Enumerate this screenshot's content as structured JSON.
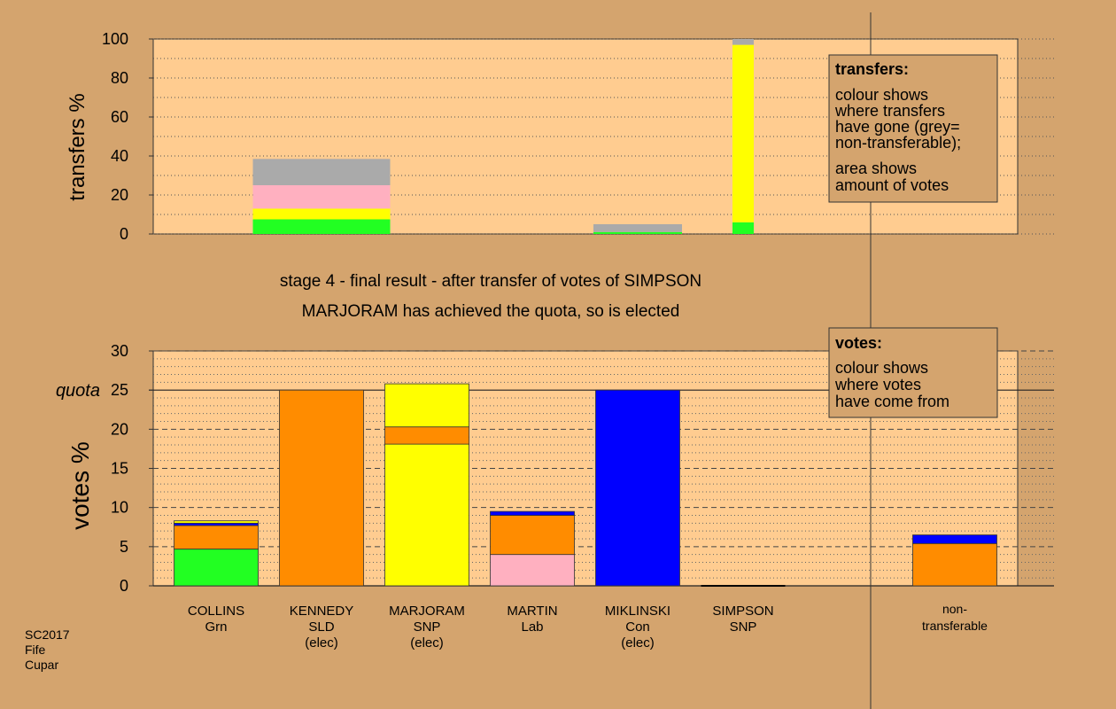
{
  "colors": {
    "background": "#D4A46E",
    "plot_area": "#FFCC90",
    "Grn": "#22FF22",
    "SLD": "#FF8C00",
    "SNP": "#FFFF00",
    "Lab": "#FFB0C0",
    "Con": "#0000FF",
    "non_transferable": "#AAAAAA"
  },
  "caption": {
    "line1": "stage 4 - final result - after transfer of votes of SIMPSON",
    "line2": "MARJORAM has achieved the quota, so is elected"
  },
  "footer": {
    "year": "SC2017",
    "council": "Fife",
    "ward": "Cupar"
  },
  "legend_transfers": {
    "title": "transfers:",
    "lines1": [
      "colour shows",
      "where transfers",
      "have gone (grey=",
      "non-transferable);"
    ],
    "lines2": [
      "area shows",
      "amount of votes"
    ]
  },
  "legend_votes": {
    "title": "votes:",
    "lines": [
      "colour shows",
      "where votes",
      "have come from"
    ]
  },
  "chart_data": [
    {
      "type": "bar",
      "id": "transfers",
      "ylabel": "transfers %",
      "ylim": [
        0,
        100
      ],
      "yticks": [
        0,
        20,
        40,
        60,
        80,
        100
      ],
      "bars": [
        {
          "candidate": "COLLINS",
          "segments": [
            {
              "source": "Grn",
              "value": 7.5
            },
            {
              "source": "SNP",
              "value": 5.5
            },
            {
              "source": "Lab",
              "value": 12
            },
            {
              "source": "non_transferable",
              "value": 13.5
            }
          ]
        },
        {
          "candidate": "MIKLINSKI",
          "segments": [
            {
              "source": "Grn",
              "value": 1
            },
            {
              "source": "non_transferable",
              "value": 4
            }
          ]
        },
        {
          "candidate": "SIMPSON",
          "segments": [
            {
              "source": "Grn",
              "value": 6
            },
            {
              "source": "SNP",
              "value": 91
            },
            {
              "source": "non_transferable",
              "value": 3
            }
          ]
        }
      ]
    },
    {
      "type": "bar",
      "id": "votes",
      "ylabel": "votes %",
      "ylim": [
        0,
        30
      ],
      "yticks": [
        0,
        5,
        10,
        15,
        20,
        25,
        30
      ],
      "quota": 25,
      "quota_label": "quota",
      "candidates": [
        {
          "name": "COLLINS",
          "party": "Grn",
          "elected": ""
        },
        {
          "name": "KENNEDY",
          "party": "SLD",
          "elected": "(elec)"
        },
        {
          "name": "MARJORAM",
          "party": "SNP",
          "elected": "(elec)"
        },
        {
          "name": "MARTIN",
          "party": "Lab",
          "elected": ""
        },
        {
          "name": "MIKLINSKI",
          "party": "Con",
          "elected": "(elec)"
        },
        {
          "name": "SIMPSON",
          "party": "SNP",
          "elected": ""
        }
      ],
      "nontransferable_label": [
        "non-",
        "transferable"
      ],
      "bars": [
        {
          "candidate": "COLLINS",
          "segments": [
            {
              "source": "Grn",
              "value": 4.7
            },
            {
              "source": "SLD",
              "value": 3.0
            },
            {
              "source": "Con",
              "value": 0.3
            },
            {
              "source": "SNP",
              "value": 0.3
            }
          ]
        },
        {
          "candidate": "KENNEDY",
          "segments": [
            {
              "source": "SLD",
              "value": 25.0
            }
          ]
        },
        {
          "candidate": "MARJORAM",
          "segments": [
            {
              "source": "SNP",
              "value": 18.1
            },
            {
              "source": "SLD",
              "value": 2.2
            },
            {
              "source": "SNP",
              "value": 5.5
            }
          ]
        },
        {
          "candidate": "MARTIN",
          "segments": [
            {
              "source": "Lab",
              "value": 4.0
            },
            {
              "source": "SLD",
              "value": 5.0
            },
            {
              "source": "Con",
              "value": 0.5
            }
          ]
        },
        {
          "candidate": "MIKLINSKI",
          "segments": [
            {
              "source": "Con",
              "value": 25.0
            }
          ]
        },
        {
          "candidate": "SIMPSON",
          "segments": [
            {
              "source": "SNP",
              "value": 0.0
            }
          ]
        },
        {
          "candidate": "non-transferable",
          "segments": [
            {
              "source": "SLD",
              "value": 5.4
            },
            {
              "source": "Con",
              "value": 1.1
            }
          ]
        }
      ]
    }
  ]
}
